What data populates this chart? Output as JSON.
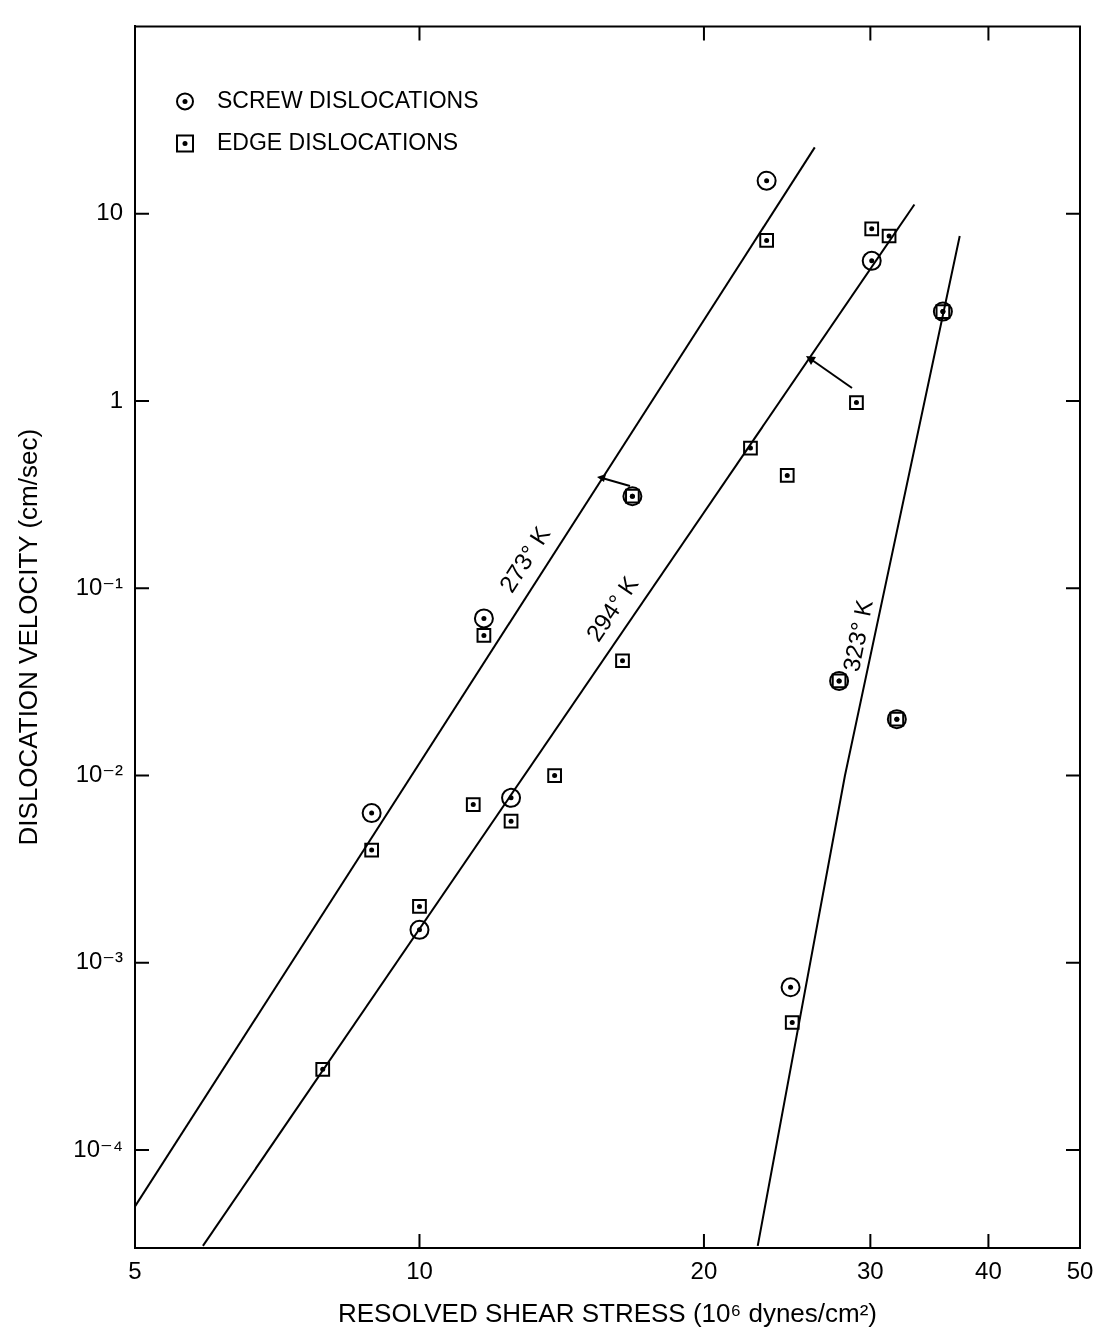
{
  "chart_data": {
    "type": "scatter",
    "xlabel": "RESOLVED SHEAR STRESS (10⁶ dynes/cm²)",
    "ylabel": "DISLOCATION VELOCITY (cm/sec)",
    "log": "xy",
    "xlim": [
      5,
      50
    ],
    "ylim": [
      3e-05,
      100
    ],
    "xticks": [
      5,
      10,
      20,
      30,
      40,
      50
    ],
    "yticks": [
      {
        "value": 0.0001,
        "label": "10⁻⁴"
      },
      {
        "value": 0.001,
        "label": "10⁻³"
      },
      {
        "value": 0.01,
        "label": "10⁻²"
      },
      {
        "value": 0.1,
        "label": "10⁻¹"
      },
      1,
      10
    ],
    "grid": false,
    "legend": "top left",
    "series": [
      {
        "name": "SCREW DISLOCATIONS",
        "type": "scatter",
        "marker": "circle",
        "color": "#000000",
        "x": [
          8.9,
          10,
          11.7,
          12.5,
          16.8,
          23.3,
          30.1,
          27.8,
          32,
          35.8,
          24.7
        ],
        "values": [
          0.0063,
          0.0015,
          0.069,
          0.0076,
          0.31,
          15,
          5.6,
          0.032,
          0.02,
          3.0,
          0.00074
        ]
      },
      {
        "name": "EDGE DISLOCATIONS",
        "type": "scatter",
        "marker": "square",
        "color": "#000000",
        "x": [
          7.9,
          8.9,
          10,
          11.7,
          11.4,
          12.5,
          13.9,
          16.4,
          16.8,
          22.4,
          23.3,
          24.5,
          29,
          30.1,
          31.4,
          24.8,
          27.8,
          32,
          35.8
        ],
        "values": [
          0.00027,
          0.004,
          0.002,
          0.056,
          0.007,
          0.0057,
          0.01,
          0.041,
          0.31,
          0.56,
          7.2,
          0.4,
          0.98,
          8.3,
          7.6,
          0.00048,
          0.032,
          0.02,
          3.0
        ]
      },
      {
        "name": "273° K",
        "type": "line",
        "marker": "none",
        "line_style": "solid",
        "color": "#000000",
        "x": [
          5,
          26.2
        ],
        "values": [
          5e-05,
          22.6
        ]
      },
      {
        "name": "294° K",
        "type": "line",
        "marker": "none",
        "line_style": "solid",
        "color": "#000000",
        "x": [
          5.9,
          33.4
        ],
        "values": [
          3.08e-05,
          11.2
        ]
      },
      {
        "name": "323° K",
        "type": "line",
        "marker": "none",
        "line_style": "solid",
        "color": "#000000",
        "x": [
          22.8,
          28.2,
          37.3
        ],
        "values": [
          3.08e-05,
          0.01,
          7.6
        ]
      }
    ]
  }
}
